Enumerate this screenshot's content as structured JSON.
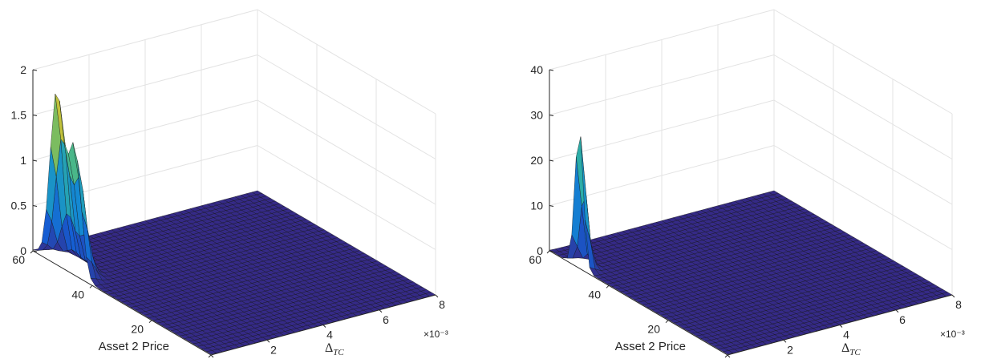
{
  "chart_data": [
    {
      "type": "surface",
      "title": "",
      "xlabel": "Asset 2 Price",
      "ylabel_base": "Δ",
      "ylabel_sub": "TC",
      "zlabel": "",
      "xlim": [
        0,
        60
      ],
      "ylim": [
        0,
        0.008
      ],
      "zlim": [
        0,
        2
      ],
      "x_ticks": [
        "0",
        "20",
        "40",
        "60"
      ],
      "y_ticks": [
        "0",
        "2",
        "4",
        "6",
        "8"
      ],
      "y_multiplier": "×10⁻³",
      "z_ticks": [
        "0",
        "0.5",
        "1",
        "1.5",
        "2"
      ],
      "grid": true,
      "colormap": "parula",
      "peaks": [
        {
          "asset2_price": 52,
          "delta_tc": 0.0,
          "height": 1.9
        },
        {
          "asset2_price": 46,
          "delta_tc": 0.0,
          "height": 1.4
        }
      ]
    },
    {
      "type": "surface",
      "title": "",
      "xlabel": "Asset 2 Price",
      "ylabel_base": "Δ",
      "ylabel_sub": "TC",
      "zlabel": "",
      "xlim": [
        0,
        60
      ],
      "ylim": [
        0,
        0.008
      ],
      "zlim": [
        0,
        40
      ],
      "x_ticks": [
        "0",
        "20",
        "40",
        "60"
      ],
      "y_ticks": [
        "0",
        "2",
        "4",
        "6",
        "8"
      ],
      "y_multiplier": "×10⁻³",
      "z_ticks": [
        "0",
        "10",
        "20",
        "30",
        "40"
      ],
      "grid": true,
      "colormap": "parula",
      "peaks": [
        {
          "asset2_price": 50,
          "delta_tc": 0.0,
          "height": 31
        }
      ]
    }
  ]
}
